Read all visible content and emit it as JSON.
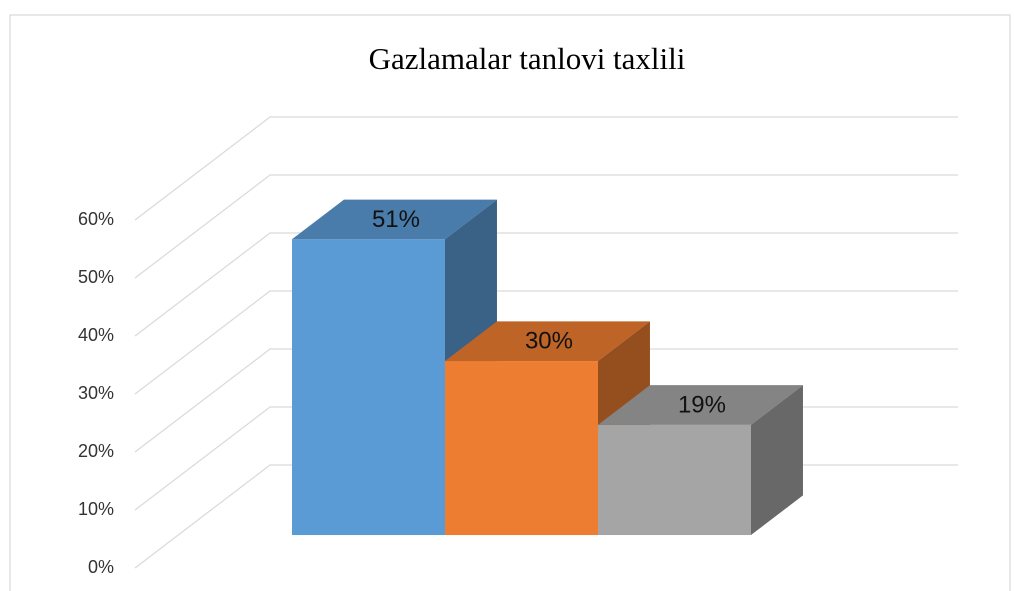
{
  "chart_data": {
    "type": "bar3d",
    "title": "Gazlamalar tanlovi taxlili",
    "categories": [
      null,
      null,
      null
    ],
    "values": [
      51,
      30,
      19
    ],
    "value_labels": [
      "51%",
      "30%",
      "19%"
    ],
    "colors": [
      "#5b9bd5",
      "#ed7d31",
      "#a5a5a5"
    ],
    "ylim": [
      0,
      60
    ],
    "yticks": [
      {
        "value": 0,
        "label": "0%"
      },
      {
        "value": 10,
        "label": "10%"
      },
      {
        "value": 20,
        "label": "20%"
      },
      {
        "value": 30,
        "label": "30%"
      },
      {
        "value": 40,
        "label": "40%"
      },
      {
        "value": 50,
        "label": "50%"
      },
      {
        "value": 60,
        "label": "60%"
      }
    ],
    "grid": true
  }
}
